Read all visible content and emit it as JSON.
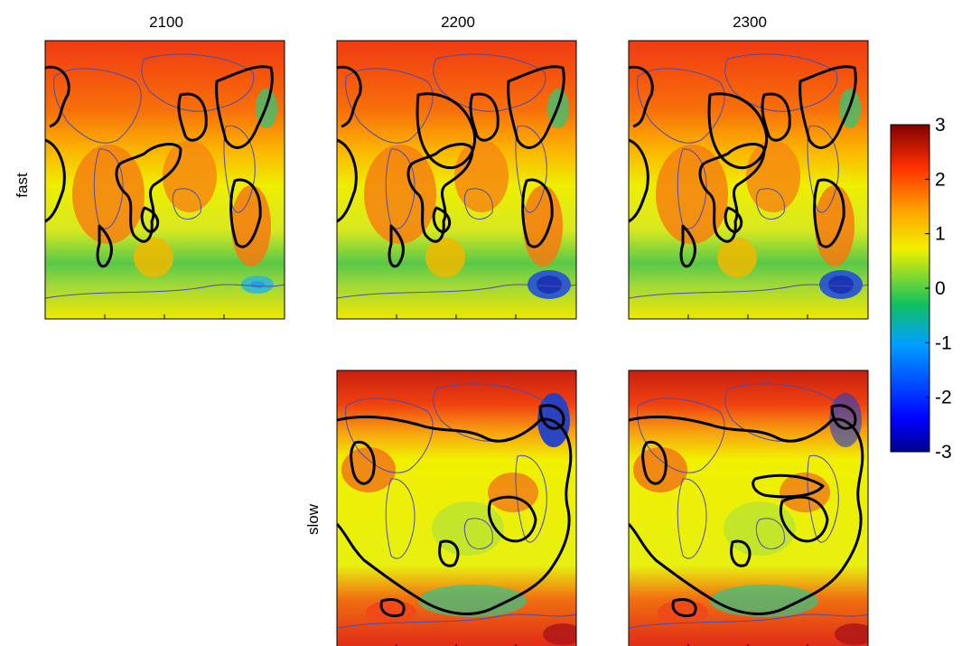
{
  "figure": {
    "column_titles": [
      "2100",
      "2200",
      "2300"
    ],
    "row_labels": [
      "fast",
      "slow"
    ]
  },
  "chart_data": {
    "type": "heatmap",
    "panels": [
      {
        "row": "fast",
        "column": "2100",
        "present": true
      },
      {
        "row": "fast",
        "column": "2200",
        "present": true
      },
      {
        "row": "fast",
        "column": "2300",
        "present": true
      },
      {
        "row": "slow",
        "column": "2100",
        "present": false
      },
      {
        "row": "slow",
        "column": "2200",
        "present": true
      },
      {
        "row": "slow",
        "column": "2300",
        "present": true
      }
    ],
    "colorbar": {
      "range": [
        -3,
        3
      ],
      "ticks": [
        "3",
        "2",
        "1",
        "0",
        "-1",
        "-2",
        "-3"
      ],
      "tick_values": [
        3,
        2,
        1,
        0,
        -1,
        -2,
        -3
      ],
      "colormap": [
        "#00008f",
        "#0000ff",
        "#00a0ff",
        "#10c060",
        "#f0f000",
        "#ffa000",
        "#ff3000",
        "#800000"
      ]
    },
    "colors": {
      "coastline": "#4a4ab8",
      "contour": "#000000"
    }
  }
}
